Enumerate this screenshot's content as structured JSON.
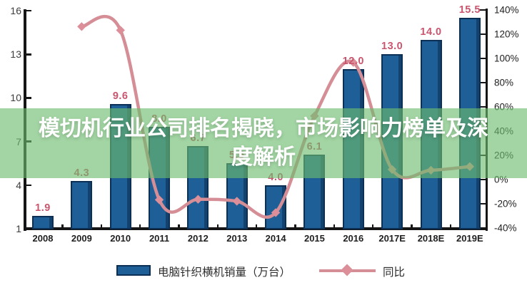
{
  "overlay": {
    "title": "模切机行业公司排名揭晓，市场影响力榜单及深度解析",
    "band_color": "rgba(108,188,110,0.63)",
    "text_color": "#ffffff"
  },
  "chart_data": {
    "type": "combo-bar-line",
    "categories": [
      "2008",
      "2009",
      "2010",
      "2011",
      "2012",
      "2013",
      "2014",
      "2015",
      "2016",
      "2017E",
      "2018E",
      "2019E"
    ],
    "series": [
      {
        "name": "电脑针织横机销量（万台）",
        "type": "bar",
        "axis": "left",
        "values": [
          1.9,
          4.3,
          9.6,
          8.0,
          6.7,
          5.5,
          4.0,
          6.1,
          12.0,
          13.0,
          14.0,
          15.5
        ],
        "labels": [
          "1.9",
          "4.3",
          "9.6",
          "8.0",
          "6.7",
          "5.5",
          "4.0",
          "6.1",
          "12.0",
          "13.0",
          "14.0",
          "15.5"
        ],
        "color": "#1e5f97",
        "border_color": "#0c2f55",
        "label_color": "#c9566e"
      },
      {
        "name": "同比",
        "type": "line",
        "axis": "right",
        "unit": "%",
        "values": [
          null,
          126.3,
          123.3,
          -16.7,
          -16.3,
          -17.9,
          -27.3,
          52.5,
          96.7,
          8.3,
          7.7,
          10.7
        ],
        "color": "#d58e96",
        "marker": "diamond",
        "marker_color": "#dc8f99"
      }
    ],
    "left_axis": {
      "tick_labels": [
        16,
        13,
        10,
        7,
        4,
        1
      ],
      "min": 1,
      "max": 16
    },
    "right_axis": {
      "tick_labels": [
        "140%",
        "120%",
        "100%",
        "80%",
        "60%",
        "40%",
        "20%",
        "0%",
        "-20%",
        "-40%"
      ],
      "min": -40,
      "max": 140
    },
    "grid": false,
    "legend_position": "bottom"
  }
}
